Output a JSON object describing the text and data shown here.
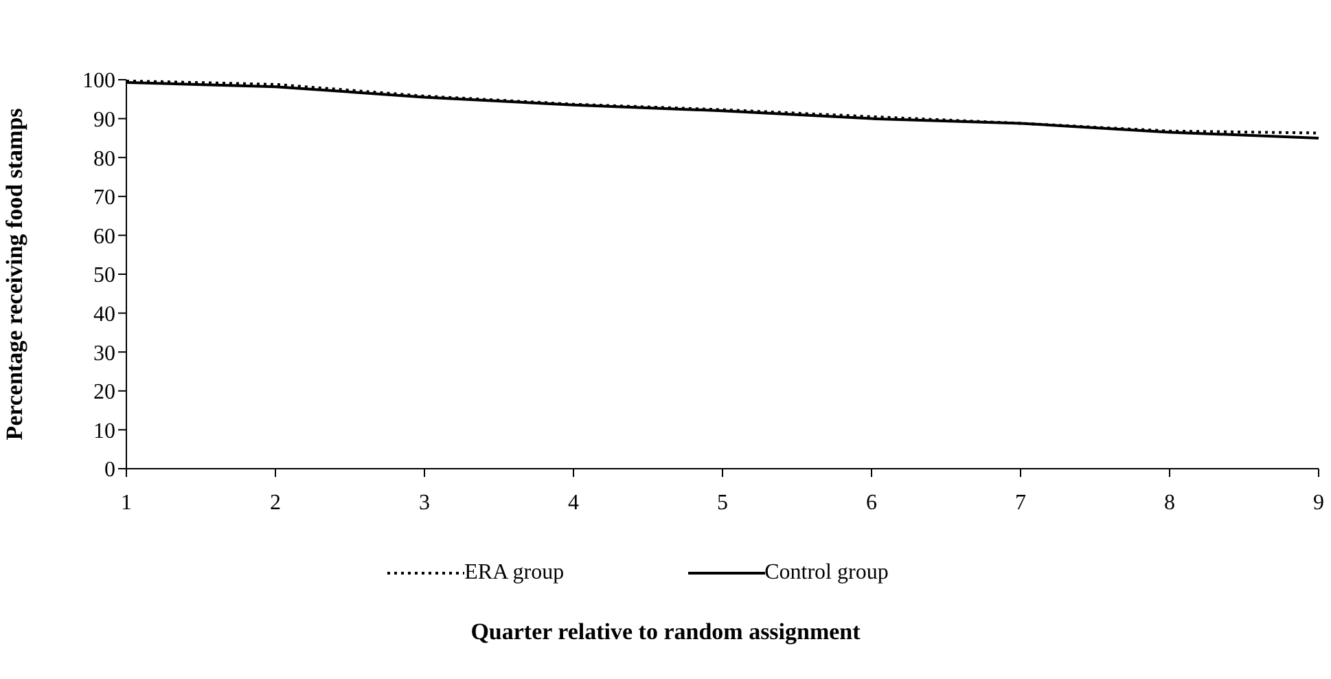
{
  "chart_data": {
    "type": "line",
    "xlabel": "Quarter relative to random assignment",
    "ylabel": "Percentage receiving food stamps",
    "x": [
      1,
      2,
      3,
      4,
      5,
      6,
      7,
      8,
      9
    ],
    "series": [
      {
        "name": "ERA group",
        "color": "#000000",
        "line_style": "dotted",
        "values": [
          99.7,
          98.8,
          95.8,
          93.7,
          92.3,
          90.5,
          88.8,
          86.8,
          86.3
        ]
      },
      {
        "name": "Control group",
        "color": "#000000",
        "line_style": "solid",
        "values": [
          99.3,
          98.2,
          95.5,
          93.5,
          92.0,
          90.0,
          88.8,
          86.5,
          85.0
        ]
      }
    ],
    "xlim": [
      1,
      9
    ],
    "xticks": [
      1,
      2,
      3,
      4,
      5,
      6,
      7,
      8,
      9
    ],
    "ylim": [
      0,
      100
    ],
    "yticks": [
      0,
      10,
      20,
      30,
      40,
      50,
      60,
      70,
      80,
      90,
      100
    ],
    "grid": false,
    "legend": "bottom",
    "marker": "none"
  }
}
